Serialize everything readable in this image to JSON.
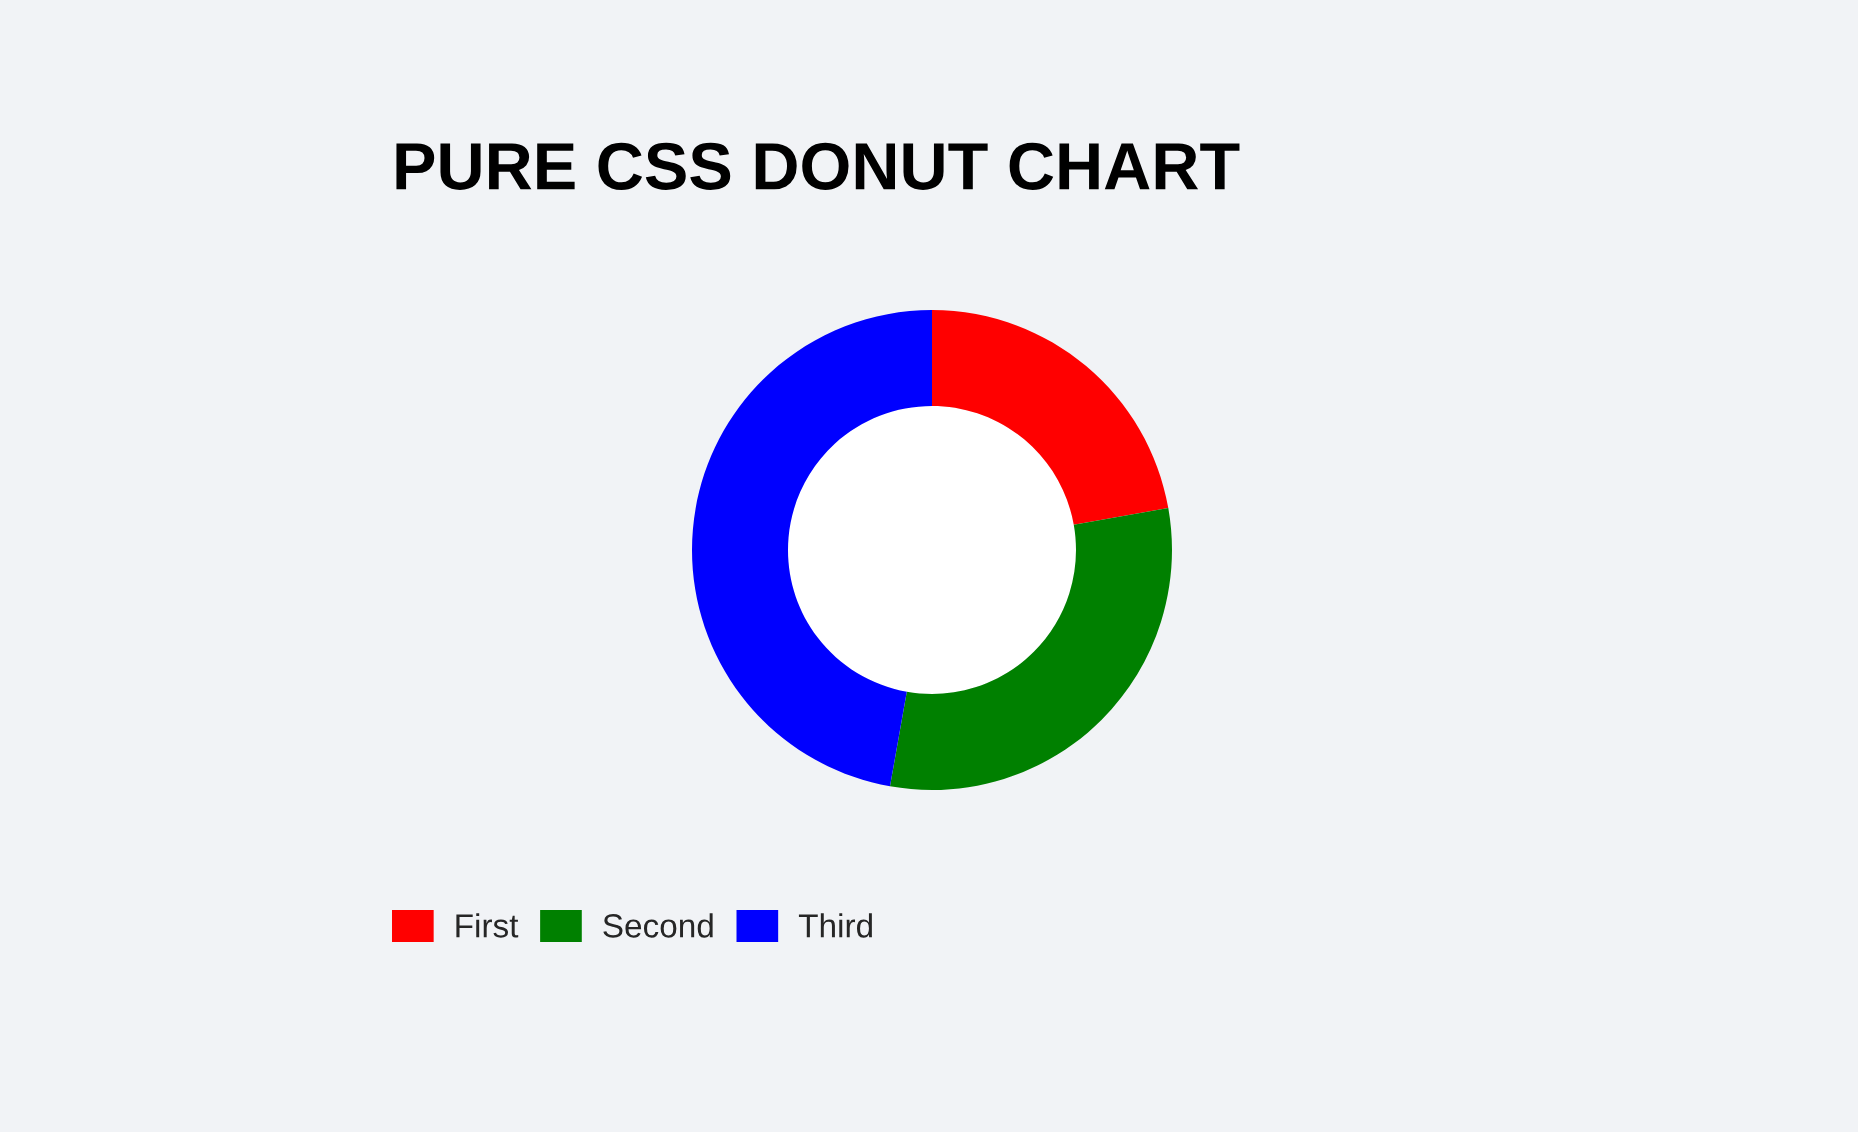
{
  "chart_data": {
    "type": "donut",
    "title": "PURE CSS DONUT CHART",
    "categories": [
      "First",
      "Second",
      "Third"
    ],
    "values": [
      22.2,
      30.6,
      47.2
    ],
    "colors": [
      "#ff0000",
      "#008000",
      "#0000ff"
    ],
    "legend": "bottom"
  }
}
